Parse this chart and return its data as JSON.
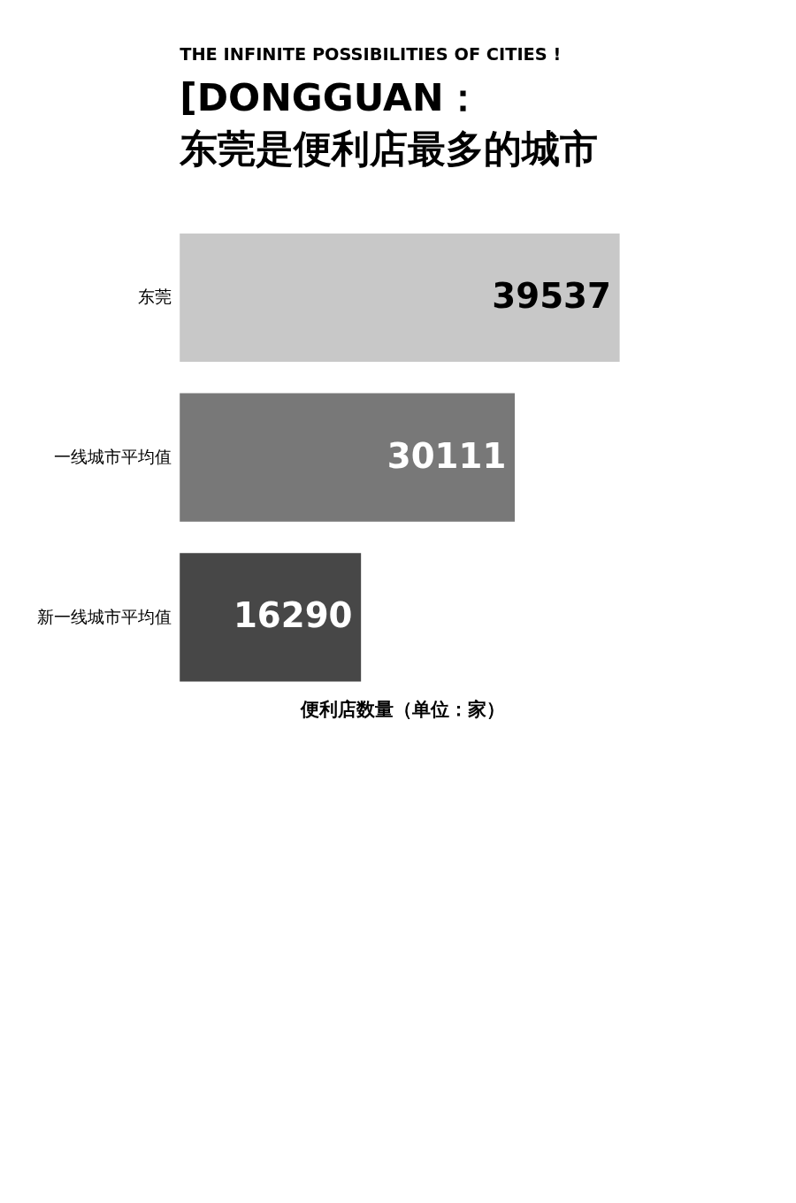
{
  "chart_data": {
    "type": "bar",
    "orientation": "horizontal",
    "subtitle": "THE INFINITE POSSIBILITIES OF CITIES !",
    "annotations": [
      "[DONGGUAN："
    ],
    "title": "东莞是便利店最多的城市",
    "categories": [
      "东莞",
      "一线城市平均值",
      "新一线城市平均值"
    ],
    "values": [
      39537,
      30111,
      16290
    ],
    "colors": [
      "#c8c8c8",
      "#787878",
      "#474747"
    ],
    "xlabel": "便利店数量（单位：家）",
    "data_labels": true,
    "grid": false
  }
}
